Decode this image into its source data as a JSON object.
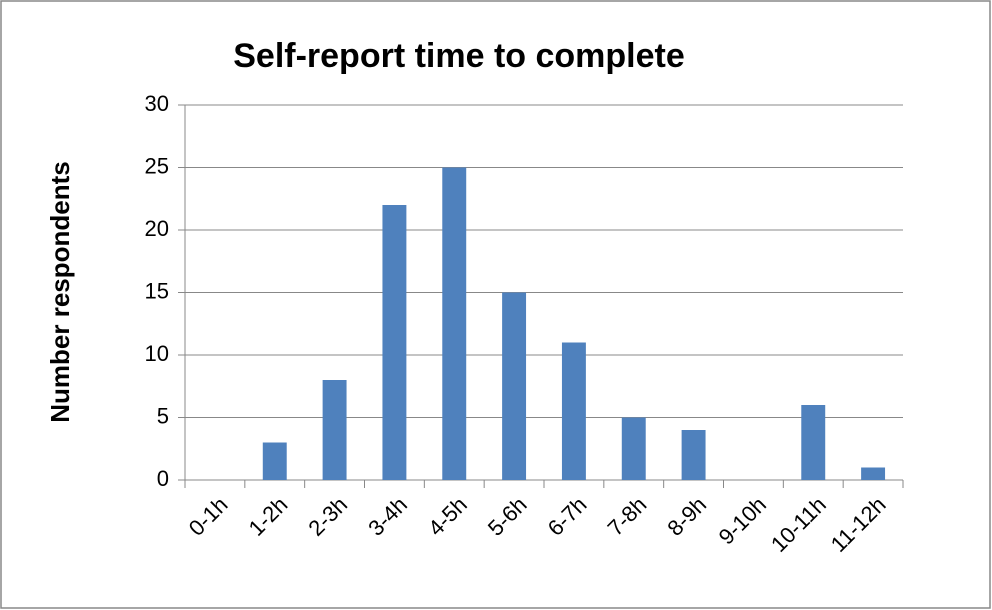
{
  "chart_data": {
    "type": "bar",
    "title": "Self-report time to complete",
    "y_label": "Number respondents",
    "categories": [
      "0-1h",
      "1-2h",
      "2-3h",
      "3-4h",
      "4-5h",
      "5-6h",
      "6-7h",
      "7-8h",
      "8-9h",
      "9-10h",
      "10-11h",
      "11-12h"
    ],
    "values": [
      0,
      3,
      8,
      22,
      25,
      15,
      11,
      5,
      4,
      0,
      6,
      1
    ],
    "color": "#4f81bd",
    "ylim": [
      0,
      30
    ],
    "yticks": [
      0,
      5,
      10,
      15,
      20,
      25,
      30
    ],
    "grid": true
  }
}
